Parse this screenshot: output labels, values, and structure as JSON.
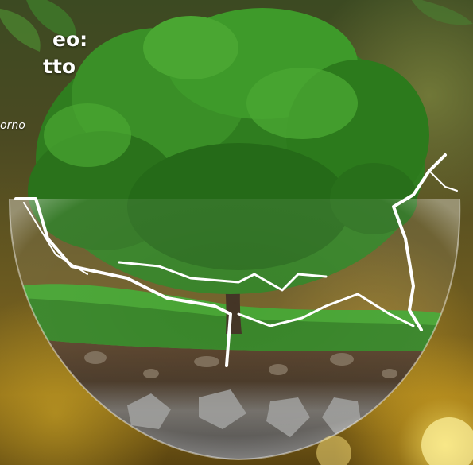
{
  "title_lines": [
    "eo:",
    "tto"
  ],
  "subtitle": "orno",
  "colors": {
    "foliage": "#2f7d1f",
    "foliage_light": "#5fb53a",
    "grass": "#3fa02a",
    "soil": "#4a3620",
    "rock": "#6c6c6c",
    "glass_crack": "#ffffff",
    "background": "#6b5a20"
  }
}
